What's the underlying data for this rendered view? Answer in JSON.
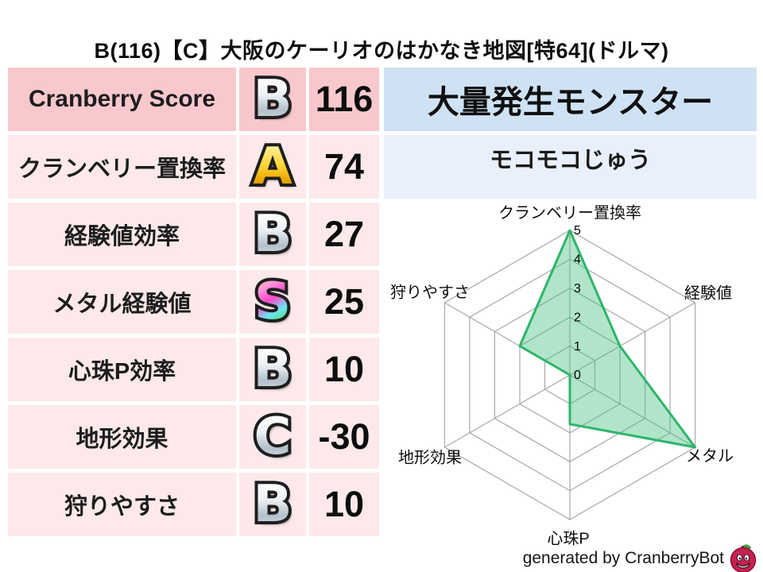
{
  "title": "B(116)【C】大阪のケーリオのはかなき地図[特64](ドルマ)",
  "table": {
    "rows": [
      {
        "label": "Cranberry Score",
        "grade": "B",
        "grade_style": "silver",
        "value": "116"
      },
      {
        "label": "クランベリー置換率",
        "grade": "A",
        "grade_style": "gold",
        "value": "74"
      },
      {
        "label": "経験値効率",
        "grade": "B",
        "grade_style": "silver",
        "value": "27"
      },
      {
        "label": "メタル経験値",
        "grade": "S",
        "grade_style": "rainbow",
        "value": "25"
      },
      {
        "label": "心珠P効率",
        "grade": "B",
        "grade_style": "silver",
        "value": "10"
      },
      {
        "label": "地形効果",
        "grade": "C",
        "grade_style": "silver",
        "value": "-30"
      },
      {
        "label": "狩りやすさ",
        "grade": "B",
        "grade_style": "silver",
        "value": "10"
      }
    ]
  },
  "monster_panel": {
    "header": "大量発生モンスター",
    "name": "モコモコじゅう"
  },
  "chart_data": {
    "type": "radar",
    "categories": [
      "クランベリー置換率",
      "経験値",
      "メタル",
      "心珠P",
      "地形効果",
      "狩りやすさ"
    ],
    "values": [
      5,
      2,
      5,
      1.7,
      0,
      2
    ],
    "max": 5,
    "ticks": [
      0,
      1,
      2,
      3,
      4,
      5
    ],
    "grid": "hexagon, 5 levels + 6 spokes",
    "legend_position": "none",
    "fill_color": "rgba(61,190,120,0.40)",
    "stroke_color": "#2db56a",
    "grid_color": "#a8a8a8"
  },
  "footer": {
    "credit": "generated by CranberryBot",
    "logo_icon": "cranberry-bot-icon"
  },
  "colors": {
    "row_primary_pink": "#f9c8cd",
    "row_light_pink": "#fde9ea",
    "header_blue": "#cfe2f4",
    "panel_blue": "#e8f1fb",
    "berry_red": "#c6214f",
    "leaf_green": "#3f9b3f"
  }
}
